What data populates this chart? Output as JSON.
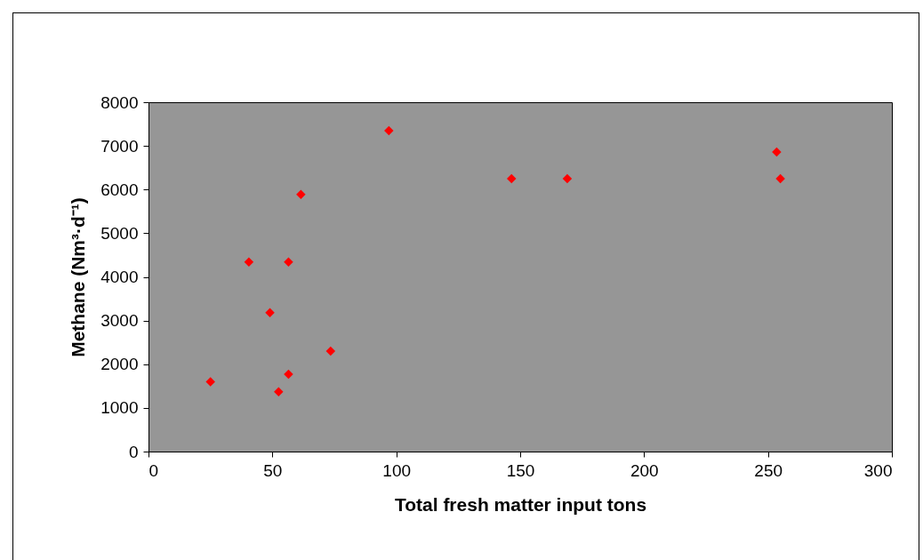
{
  "chart_data": {
    "type": "scatter",
    "xlabel": "Total fresh matter input tons",
    "ylabel": "Methane (Nm³·d⁻¹)",
    "x": [
      25,
      40.5,
      49,
      52.5,
      56.5,
      56.5,
      61.5,
      73.5,
      97,
      146.5,
      169,
      253.5,
      255
    ],
    "values": [
      1600,
      4340,
      3180,
      1370,
      1770,
      4340,
      5890,
      2300,
      7350,
      6250,
      6250,
      6860,
      6250
    ],
    "color": "#ff0000",
    "marker": "diamond",
    "grid": false,
    "xlim": [
      0,
      300
    ],
    "xticks": [
      0,
      50,
      100,
      150,
      200,
      250,
      300
    ],
    "ylim": [
      0,
      8000
    ],
    "yticks": [
      0,
      1000,
      2000,
      3000,
      4000,
      5000,
      6000,
      7000,
      8000
    ]
  }
}
